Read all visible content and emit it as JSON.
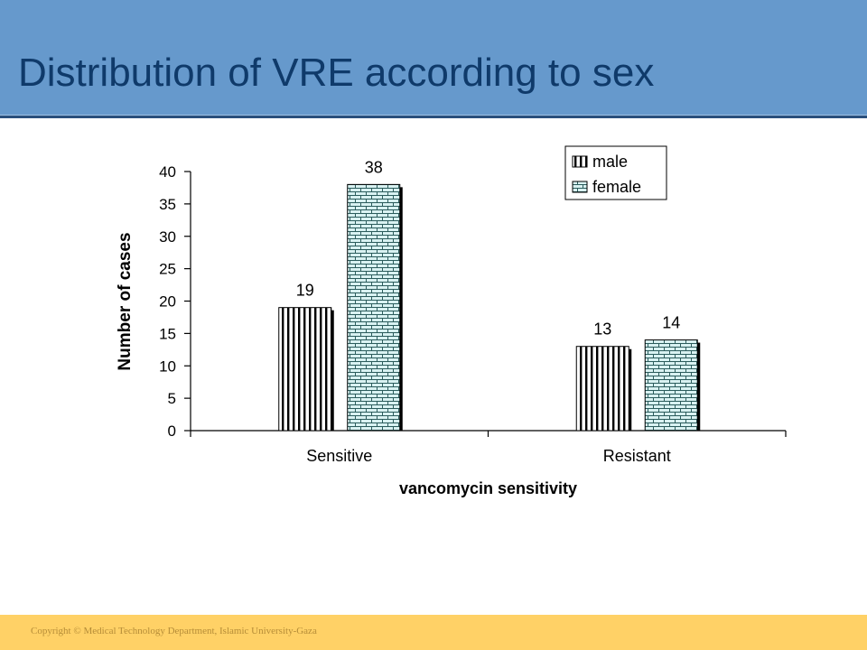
{
  "slide": {
    "title": "Distribution of VRE according to sex",
    "footer": "Copyright © Medical Technology Department, Islamic University-Gaza"
  },
  "colors": {
    "header_bg": "#6699cc",
    "title_text": "#0f3a6a",
    "footer_bg": "#ffd166",
    "female_fill": "#d9f2f2",
    "male_fill": "#ffffff"
  },
  "chart_data": {
    "type": "bar",
    "categories": [
      "Sensitive",
      "Resistant"
    ],
    "series": [
      {
        "name": "male",
        "values": [
          19,
          13
        ],
        "pattern": "vertical-stripes"
      },
      {
        "name": "female",
        "values": [
          38,
          14
        ],
        "pattern": "brick"
      }
    ],
    "data_labels": [
      [
        "19",
        "13"
      ],
      [
        "38",
        "14"
      ]
    ],
    "title": "",
    "xlabel": "vancomycin sensitivity",
    "ylabel": "Number of cases",
    "ylim": [
      0,
      40
    ],
    "yticks": [
      0,
      5,
      10,
      15,
      20,
      25,
      30,
      35,
      40
    ],
    "grid": false,
    "legend": "top-right"
  }
}
